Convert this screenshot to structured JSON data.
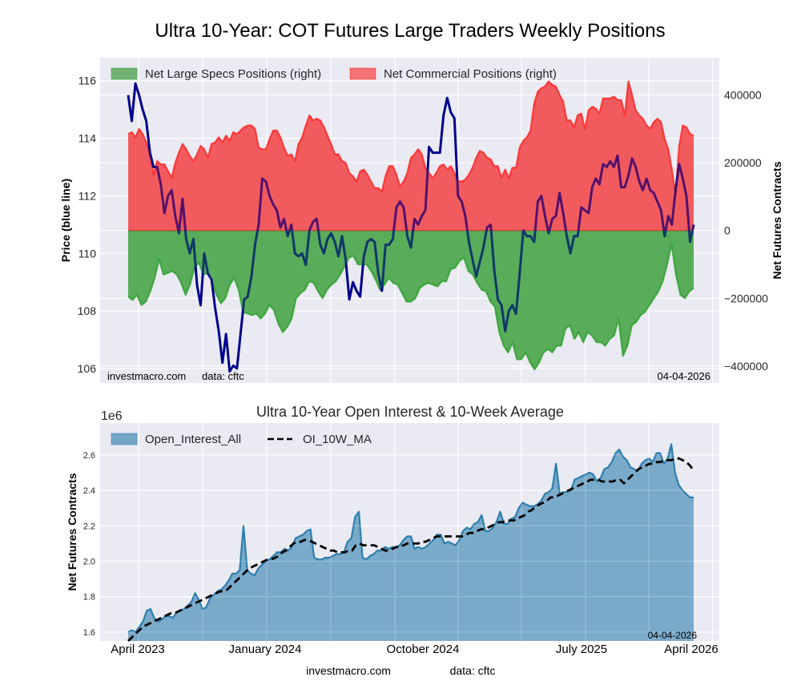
{
  "page_title": "Ultra 10-Year: COT Futures Large Traders Weekly Positions",
  "footer": {
    "site": "investmacro.com",
    "source": "data: cftc"
  },
  "chart_data": [
    {
      "type": "area",
      "title": "Ultra 10-Year: COT Futures Large Traders Weekly Positions",
      "ylabel_left": "Price (blue line)",
      "ylabel_right": "Net Futures Contracts",
      "ylim_left": [
        105.5,
        116.8
      ],
      "ylim_right": [
        -450000,
        510000
      ],
      "yticks_left": [
        "106",
        "108",
        "110",
        "112",
        "114",
        "116"
      ],
      "yticks_left_values": [
        106,
        108,
        110,
        112,
        114,
        116
      ],
      "yticks_right": [
        "−400000",
        "−200000",
        "0",
        "200000",
        "400000"
      ],
      "yticks_right_values": [
        -400000,
        -200000,
        0,
        200000,
        400000
      ],
      "grid": true,
      "legend_position": "top-left",
      "annotations": {
        "site": "investmacro.com",
        "source": "data: cftc",
        "date": "04-04-2026"
      },
      "x_range": [
        "April 2023",
        "April 2026"
      ],
      "series": [
        {
          "name": "Net Large Specs Positions (right)",
          "kind": "area",
          "color": "#2ca02c",
          "fill": "#72b372",
          "values": [
            -195000,
            -205000,
            -190000,
            -220000,
            -210000,
            -180000,
            -140000,
            -85000,
            -130000,
            -125000,
            -120000,
            -130000,
            -155000,
            -190000,
            -160000,
            -110000,
            -95000,
            -130000,
            -125000,
            -150000,
            -190000,
            -215000,
            -200000,
            -160000,
            -140000,
            -175000,
            -240000,
            -245000,
            -250000,
            -245000,
            -260000,
            -245000,
            -220000,
            -235000,
            -275000,
            -300000,
            -285000,
            -260000,
            -200000,
            -185000,
            -175000,
            -150000,
            -155000,
            -180000,
            -200000,
            -175000,
            -160000,
            -150000,
            -130000,
            -105000,
            -80000,
            -75000,
            -100000,
            -100000,
            -100000,
            -120000,
            -145000,
            -175000,
            -160000,
            -140000,
            -155000,
            -160000,
            -185000,
            -210000,
            -210000,
            -200000,
            -170000,
            -160000,
            -155000,
            -160000,
            -165000,
            -150000,
            -150000,
            -115000,
            -110000,
            -90000,
            -80000,
            -120000,
            -130000,
            -155000,
            -175000,
            -180000,
            -210000,
            -225000,
            -300000,
            -340000,
            -360000,
            -330000,
            -380000,
            -380000,
            -360000,
            -390000,
            -410000,
            -390000,
            -360000,
            -350000,
            -360000,
            -340000,
            -340000,
            -290000,
            -280000,
            -320000,
            -300000,
            -330000,
            -300000,
            -310000,
            -330000,
            -330000,
            -340000,
            -320000,
            -310000,
            -260000,
            -370000,
            -340000,
            -280000,
            -270000,
            -250000,
            -240000,
            -220000,
            -200000,
            -180000,
            -150000,
            -100000,
            -40000,
            -130000,
            -190000,
            -200000,
            -180000,
            -170000
          ],
          "unit": "contracts"
        },
        {
          "name": "Net Commercial Positions (right)",
          "kind": "area",
          "color": "#ff2020",
          "fill": "#f37276",
          "values": [
            285000,
            290000,
            275000,
            300000,
            285000,
            260000,
            220000,
            165000,
            205000,
            195000,
            195000,
            175000,
            155000,
            200000,
            230000,
            255000,
            240000,
            220000,
            205000,
            225000,
            250000,
            240000,
            215000,
            255000,
            260000,
            275000,
            260000,
            280000,
            265000,
            290000,
            285000,
            295000,
            305000,
            310000,
            310000,
            300000,
            245000,
            240000,
            240000,
            270000,
            295000,
            295000,
            275000,
            245000,
            220000,
            225000,
            205000,
            255000,
            275000,
            310000,
            340000,
            325000,
            330000,
            325000,
            305000,
            280000,
            255000,
            225000,
            225000,
            205000,
            200000,
            170000,
            160000,
            145000,
            175000,
            180000,
            165000,
            145000,
            125000,
            125000,
            115000,
            160000,
            190000,
            190000,
            165000,
            130000,
            145000,
            170000,
            215000,
            225000,
            240000,
            225000,
            185000,
            170000,
            155000,
            170000,
            190000,
            195000,
            180000,
            190000,
            170000,
            145000,
            145000,
            150000,
            165000,
            185000,
            215000,
            235000,
            230000,
            215000,
            210000,
            190000,
            190000,
            155000,
            180000,
            155000,
            185000,
            185000,
            245000,
            265000,
            275000,
            295000,
            375000,
            410000,
            420000,
            425000,
            440000,
            430000,
            425000,
            400000,
            380000,
            325000,
            325000,
            305000,
            340000,
            345000,
            300000,
            355000,
            365000,
            360000,
            345000,
            390000,
            390000,
            390000,
            395000,
            385000,
            385000,
            340000,
            440000,
            400000,
            355000,
            340000,
            330000,
            310000,
            300000,
            320000,
            330000,
            320000,
            270000,
            240000,
            180000,
            105000,
            250000,
            310000,
            305000,
            285000,
            280000
          ],
          "unit": "contracts"
        },
        {
          "name": "Price (blue line)",
          "kind": "line",
          "color": "#00008b",
          "overlap_color": "#6a0048",
          "values": [
            115.5,
            114.6,
            115.9,
            115.5,
            115.0,
            114.6,
            113.5,
            113.0,
            113.0,
            112.4,
            111.4,
            112.0,
            112.2,
            111.3,
            110.7,
            111.9,
            110.5,
            110.0,
            110.5,
            108.9,
            108.2,
            110.0,
            109.3,
            109.1,
            108.1,
            107.3,
            106.2,
            107.2,
            105.9,
            106.1,
            106.0,
            107.2,
            108.4,
            108.5,
            109.2,
            110.3,
            111.0,
            112.6,
            112.5,
            112.0,
            111.7,
            111.5,
            110.9,
            111.2,
            110.6,
            111.0,
            110.0,
            109.9,
            110.0,
            109.6,
            110.8,
            111.1,
            111.2,
            110.3,
            110.0,
            110.5,
            110.7,
            110.4,
            109.9,
            110.6,
            109.8,
            108.4,
            109.0,
            108.7,
            108.5,
            109.9,
            110.4,
            110.5,
            110.4,
            109.3,
            108.7,
            110.3,
            110.3,
            110.5,
            111.6,
            111.8,
            111.6,
            110.6,
            110.2,
            111.2,
            111.0,
            111.3,
            111.5,
            113.7,
            113.5,
            113.5,
            113.5,
            114.8,
            115.4,
            114.9,
            114.7,
            112.0,
            111.8,
            111.3,
            110.4,
            109.8,
            109.2,
            109.7,
            110.2,
            110.9,
            111.0,
            109.4,
            108.4,
            108.2,
            107.3,
            108.0,
            108.2,
            107.9,
            109.3,
            110.8,
            110.6,
            110.6,
            110.4,
            111.8,
            112.0,
            111.3,
            110.7,
            111.2,
            111.3,
            112.1,
            111.4,
            110.6,
            110.0,
            110.6,
            110.6,
            111.6,
            111.5,
            111.4,
            112.3,
            112.6,
            112.4,
            113.1,
            113.0,
            113.2,
            113.0,
            113.4,
            112.3,
            112.3,
            112.7,
            113.3,
            113.0,
            112.5,
            112.2,
            112.6,
            112.2,
            112.1,
            111.8,
            111.5,
            110.6,
            111.3,
            111.0,
            112.2,
            113.1,
            112.6,
            112.0,
            110.4,
            111.0
          ],
          "unit": "price"
        }
      ]
    },
    {
      "type": "area",
      "title": "Ultra 10-Year Open Interest & 10-Week Average",
      "ylabel": "Net Futures Contracts",
      "y_scale_label": "1e6",
      "ylim": [
        1.55,
        2.78
      ],
      "yticks": [
        "1.6",
        "1.8",
        "2.0",
        "2.2",
        "2.4",
        "2.6"
      ],
      "ytick_values": [
        1.6,
        1.8,
        2.0,
        2.2,
        2.4,
        2.6
      ],
      "xticks": [
        "April 2023",
        "January 2024",
        "October 2024",
        "July 2025",
        "April 2026"
      ],
      "grid": true,
      "legend_position": "top-left",
      "annotations": {
        "date": "04-04-2026"
      },
      "series": [
        {
          "name": "Open_Interest_All",
          "kind": "area",
          "color": "#2e7fae",
          "fill": "#74a7c7",
          "values": [
            1.6,
            1.61,
            1.6,
            1.63,
            1.66,
            1.72,
            1.73,
            1.68,
            1.66,
            1.67,
            1.69,
            1.69,
            1.68,
            1.71,
            1.72,
            1.73,
            1.75,
            1.77,
            1.82,
            1.78,
            1.73,
            1.74,
            1.79,
            1.81,
            1.83,
            1.84,
            1.86,
            1.89,
            1.93,
            1.93,
            1.95,
            2.2,
            1.95,
            1.93,
            1.92,
            1.96,
            1.98,
            2.0,
            2.01,
            2.03,
            2.05,
            2.05,
            2.07,
            2.06,
            2.08,
            2.13,
            2.14,
            2.15,
            2.17,
            2.18,
            2.02,
            2.01,
            2.01,
            2.02,
            2.02,
            2.03,
            2.04,
            2.04,
            2.05,
            2.11,
            2.13,
            2.25,
            2.28,
            2.02,
            2.01,
            2.03,
            2.04,
            2.06,
            2.06,
            2.08,
            2.07,
            2.08,
            2.08,
            2.09,
            2.12,
            2.14,
            2.14,
            2.07,
            2.08,
            2.07,
            2.08,
            2.1,
            2.12,
            2.15,
            2.15,
            2.1,
            2.11,
            2.1,
            2.09,
            2.12,
            2.17,
            2.19,
            2.18,
            2.21,
            2.22,
            2.26,
            2.17,
            2.17,
            2.19,
            2.22,
            2.28,
            2.21,
            2.21,
            2.24,
            2.25,
            2.3,
            2.33,
            2.32,
            2.31,
            2.31,
            2.32,
            2.34,
            2.38,
            2.39,
            2.41,
            2.55,
            2.38,
            2.39,
            2.39,
            2.4,
            2.46,
            2.47,
            2.48,
            2.49,
            2.5,
            2.49,
            2.45,
            2.47,
            2.52,
            2.53,
            2.56,
            2.61,
            2.63,
            2.59,
            2.57,
            2.53,
            2.52,
            2.51,
            2.55,
            2.57,
            2.58,
            2.56,
            2.61,
            2.61,
            2.55,
            2.58,
            2.66,
            2.5,
            2.43,
            2.4,
            2.38,
            2.36,
            2.36
          ],
          "unit": "millions of contracts"
        },
        {
          "name": "OI_10W_MA",
          "kind": "line",
          "style": "dashed",
          "color": "#000000",
          "values": [
            1.55,
            1.57,
            1.59,
            1.61,
            1.63,
            1.64,
            1.65,
            1.66,
            1.67,
            1.68,
            1.69,
            1.7,
            1.71,
            1.71,
            1.72,
            1.73,
            1.74,
            1.75,
            1.76,
            1.77,
            1.78,
            1.79,
            1.8,
            1.81,
            1.82,
            1.83,
            1.83,
            1.84,
            1.86,
            1.88,
            1.9,
            1.92,
            1.94,
            1.96,
            1.97,
            1.98,
            1.99,
            2.0,
            2.01,
            2.01,
            2.02,
            2.03,
            2.05,
            2.06,
            2.08,
            2.1,
            2.11,
            2.11,
            2.12,
            2.12,
            2.11,
            2.1,
            2.09,
            2.08,
            2.07,
            2.06,
            2.06,
            2.05,
            2.05,
            2.05,
            2.06,
            2.06,
            2.09,
            2.1,
            2.09,
            2.09,
            2.09,
            2.09,
            2.08,
            2.07,
            2.06,
            2.06,
            2.07,
            2.08,
            2.08,
            2.09,
            2.1,
            2.1,
            2.1,
            2.1,
            2.11,
            2.11,
            2.12,
            2.13,
            2.14,
            2.14,
            2.14,
            2.14,
            2.14,
            2.14,
            2.14,
            2.14,
            2.15,
            2.16,
            2.16,
            2.17,
            2.18,
            2.18,
            2.19,
            2.2,
            2.21,
            2.22,
            2.22,
            2.23,
            2.23,
            2.23,
            2.24,
            2.25,
            2.26,
            2.28,
            2.29,
            2.31,
            2.32,
            2.33,
            2.34,
            2.36,
            2.36,
            2.37,
            2.38,
            2.39,
            2.4,
            2.41,
            2.42,
            2.43,
            2.44,
            2.45,
            2.46,
            2.46,
            2.46,
            2.45,
            2.45,
            2.45,
            2.45,
            2.46,
            2.46,
            2.44,
            2.46,
            2.48,
            2.5,
            2.52,
            2.53,
            2.54,
            2.55,
            2.55,
            2.56,
            2.56,
            2.57,
            2.57,
            2.57,
            2.58,
            2.58,
            2.57,
            2.56,
            2.54,
            2.51
          ],
          "unit": "millions of contracts"
        }
      ]
    }
  ]
}
